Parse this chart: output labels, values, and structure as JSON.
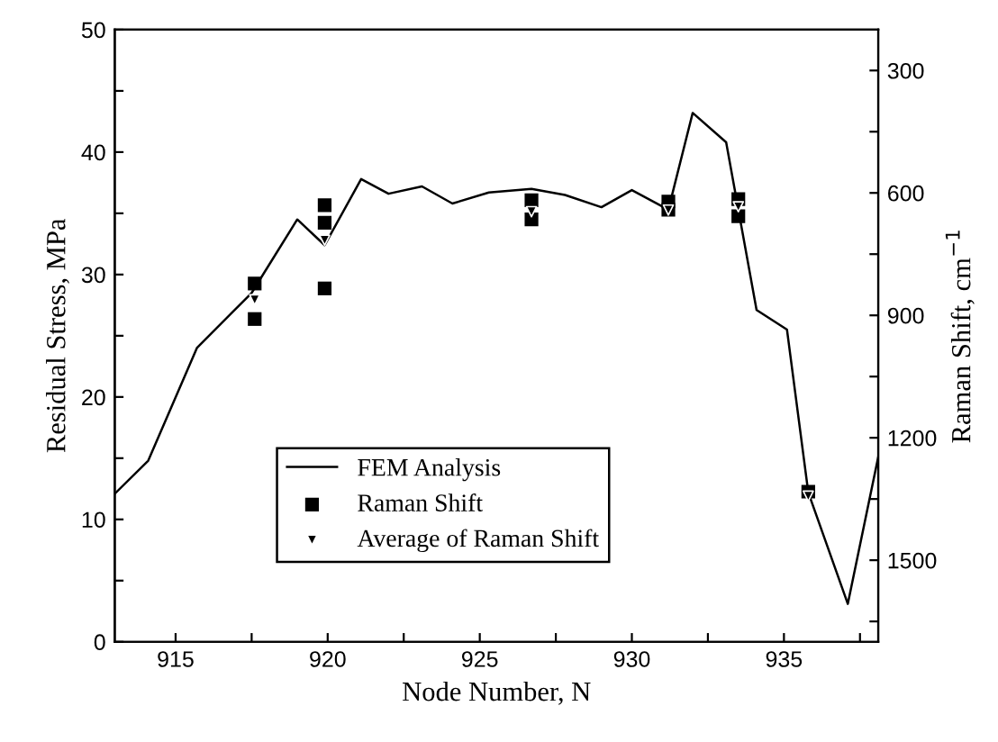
{
  "chart_data": {
    "type": "line",
    "xlabel": "Node Number, N",
    "ylabel": "Residual Stress, MPa",
    "y2label": "Raman Shift, cm$^{−1}$",
    "xlim": [
      913,
      938.1
    ],
    "xticks": [
      915,
      {
        "value": 917.5,
        "label": null
      },
      920,
      {
        "value": 922.5,
        "label": null
      },
      925,
      {
        "value": 927.5,
        "label": null
      },
      930,
      {
        "value": 932.5,
        "label": null
      },
      935,
      {
        "value": 937.5,
        "label": null
      }
    ],
    "ylim": [
      0,
      50
    ],
    "yticks": [
      0,
      {
        "value": 5,
        "label": null
      },
      10,
      {
        "value": 15,
        "label": null
      },
      20,
      {
        "value": 25,
        "label": null
      },
      30,
      {
        "value": 35,
        "label": null
      },
      40,
      {
        "value": 45,
        "label": null
      },
      50
    ],
    "y2lim": [
      1700,
      200
    ],
    "y2ticks": [
      300,
      {
        "value": 450,
        "label": null
      },
      600,
      {
        "value": 750,
        "label": null
      },
      900,
      {
        "value": 1050,
        "label": null
      },
      1200,
      {
        "value": 1350,
        "label": null
      },
      1500,
      {
        "value": 1650,
        "label": null
      }
    ],
    "grid": false,
    "legend": "bottom",
    "series": [
      {
        "name": "FEM Analysis",
        "color": "#000000",
        "marker": "none",
        "line_style": "solid",
        "x": [
          913,
          914.1,
          915.7,
          917.5,
          919,
          919.9,
          921.1,
          922,
          923.1,
          924.1,
          925.3,
          926.7,
          927.8,
          929,
          930,
          931.2,
          932,
          933.1,
          934.1,
          935.1,
          935.8,
          937.1,
          938.1
        ],
        "values": [
          12.1,
          14.8,
          24.0,
          28.5,
          34.5,
          32.4,
          37.8,
          36.6,
          37.2,
          35.8,
          36.7,
          37.0,
          36.5,
          35.5,
          36.9,
          35.3,
          43.2,
          40.8,
          27.1,
          25.5,
          12.2,
          3.1,
          15.1
        ]
      },
      {
        "name": "Raman Shift",
        "type": "scatter",
        "axis": "y2",
        "color": "#000000",
        "marker": "square",
        "x": [
          917.6,
          917.6,
          919.9,
          919.9,
          919.9,
          926.7,
          926.7,
          931.2,
          931.2,
          933.5,
          933.5,
          935.8
        ],
        "values": [
          822,
          909,
          630,
          673,
          834,
          618,
          665,
          621,
          641,
          615,
          657,
          1332
        ]
      },
      {
        "name": "Average of Raman Shift",
        "type": "scatter",
        "axis": "y2",
        "color": "#000000",
        "marker": "triangle",
        "x": [
          917.6,
          919.9,
          926.7,
          931.2,
          933.5,
          935.8
        ],
        "values": [
          862,
          716,
          646,
          642,
          634,
          1343
        ]
      }
    ]
  }
}
